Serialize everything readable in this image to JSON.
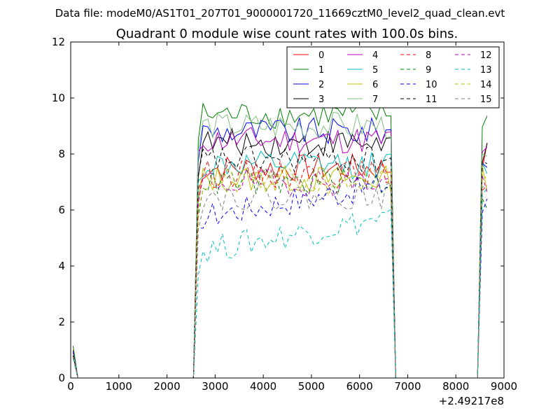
{
  "figure": {
    "suptitle": "Data file: modeM0/AS1T01_207T01_9000001720_11669cztM0_level2_quad_clean.evt"
  },
  "chart_data": {
    "type": "line",
    "title": "Quadrant 0 module wise count rates with 100.0s bins.",
    "xlabel": "",
    "ylabel": "",
    "x_offset_label": "+2.49217e8",
    "xlim": [
      0,
      9000
    ],
    "ylim": [
      0,
      12
    ],
    "xticks": [
      0,
      1000,
      2000,
      3000,
      4000,
      5000,
      6000,
      7000,
      8000,
      9000
    ],
    "yticks": [
      0,
      2,
      4,
      6,
      8,
      10,
      12
    ],
    "grid": false,
    "legend_placement": "top-right",
    "legend_columns": 4,
    "x": [
      50,
      150,
      250,
      350,
      450,
      550,
      650,
      750,
      850,
      950,
      1050,
      1150,
      1250,
      1350,
      1450,
      1550,
      1650,
      1750,
      1850,
      1950,
      2050,
      2150,
      2250,
      2350,
      2450,
      2550,
      2650,
      2750,
      2850,
      2950,
      3050,
      3150,
      3250,
      3350,
      3450,
      3550,
      3650,
      3750,
      3850,
      3950,
      4050,
      4150,
      4250,
      4350,
      4450,
      4550,
      4650,
      4750,
      4850,
      4950,
      5050,
      5150,
      5250,
      5350,
      5450,
      5550,
      5650,
      5750,
      5850,
      5950,
      6050,
      6150,
      6250,
      6350,
      6450,
      6550,
      6650,
      6750,
      6850,
      6950,
      7050,
      7150,
      7250,
      7350,
      7450,
      7550,
      7650,
      7750,
      7850,
      7950,
      8050,
      8150,
      8250,
      8350,
      8450,
      8550,
      8650
    ],
    "active_windows": [
      [
        2650,
        6650
      ],
      [
        8550,
        8650
      ]
    ],
    "series": [
      {
        "name": "0",
        "color": "#ff0000",
        "dash": "solid",
        "start": 1.0,
        "mean": 7.5,
        "end_seg": 7.8
      },
      {
        "name": "1",
        "color": "#008000",
        "dash": "solid",
        "start": 1.15,
        "mean": 9.4,
        "end_seg": 9.2
      },
      {
        "name": "2",
        "color": "#0000ff",
        "dash": "solid",
        "start": 0.95,
        "mean": 8.8,
        "end_seg": 7.8
      },
      {
        "name": "3",
        "color": "#000000",
        "dash": "solid",
        "start": 0.9,
        "mean": 8.4,
        "end_seg": 7.7
      },
      {
        "name": "4",
        "color": "#bf00bf",
        "dash": "solid",
        "start": 0.9,
        "mean": 8.5,
        "end_seg": 8.0
      },
      {
        "name": "5",
        "color": "#00bfbf",
        "dash": "solid",
        "start": 0.85,
        "mean": 7.6,
        "end_seg": 7.5
      },
      {
        "name": "6",
        "color": "#bfbf00",
        "dash": "solid",
        "start": 0.8,
        "mean": 7.1,
        "end_seg": 7.3
      },
      {
        "name": "7",
        "color": "#80c080",
        "dash": "solid",
        "start": 0.85,
        "mean": 9.0,
        "end_seg": 7.6
      },
      {
        "name": "8",
        "color": "#ff0000",
        "dash": "dashed",
        "start": 0.8,
        "mean": 7.3,
        "end_seg": 7.0
      },
      {
        "name": "9",
        "color": "#008000",
        "dash": "dashed",
        "start": 0.75,
        "mean": 7.0,
        "end_seg": 6.6
      },
      {
        "name": "10",
        "color": "#0000ff",
        "dash": "dashed",
        "start": 0.75,
        "mean": 6.3,
        "end_seg": 6.0
      },
      {
        "name": "11",
        "color": "#000000",
        "dash": "dashed",
        "start": 0.8,
        "mean": 7.8,
        "end_seg": 7.7
      },
      {
        "name": "12",
        "color": "#bf00bf",
        "dash": "dashed",
        "start": 0.75,
        "mean": 7.0,
        "end_seg": 7.1
      },
      {
        "name": "13",
        "color": "#00bfbf",
        "dash": "dashed",
        "start": 0.7,
        "mean": 5.1,
        "end_seg": 6.3
      },
      {
        "name": "14",
        "color": "#bfbf00",
        "dash": "dashed",
        "start": 0.75,
        "mean": 7.0,
        "end_seg": 7.0
      },
      {
        "name": "15",
        "color": "#808080",
        "dash": "dashed",
        "start": 0.75,
        "mean": 6.5,
        "end_seg": 7.2
      }
    ]
  }
}
